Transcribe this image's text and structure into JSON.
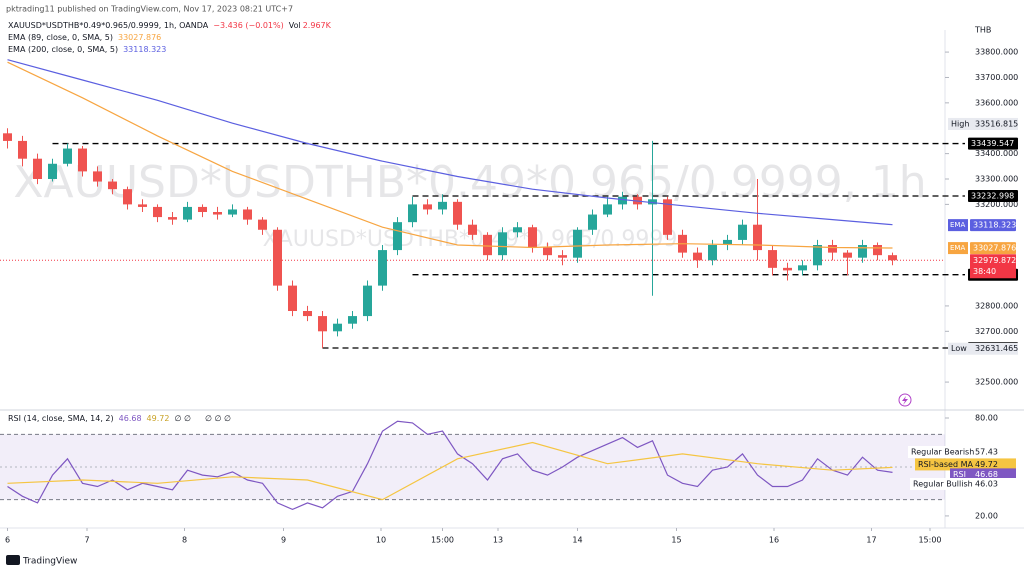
{
  "header": {
    "publisher": "pktrading11 published on TradingView.com, Nov 17, 2023 08:21 UTC+7",
    "brand": "TradingView"
  },
  "chart_data": {
    "type": "candlestick",
    "symbol": "XAUUSD*USDTHB*0.49*0.965/0.9999, 1h, OANDA",
    "change": "−3.436 (−0.01%)",
    "volume_label": "Vol",
    "volume": "2.967K",
    "watermark": "XAUUSD*USDTHB*0.49*0.965/0.9999, 1h",
    "watermark_small": "XAUUSD*USDTHB*0.49*0.965/0.9999",
    "currency": "THB",
    "up_color": "#26a69a",
    "down_color": "#ef5350",
    "x": [
      0,
      1,
      2,
      3,
      4,
      5,
      6,
      7,
      8,
      9,
      10,
      11,
      12,
      13,
      14,
      15,
      16,
      17,
      18,
      19,
      20,
      21,
      22,
      23,
      24,
      25,
      26,
      27,
      28,
      29,
      30,
      31,
      32,
      33,
      34,
      35,
      36,
      37,
      38,
      39,
      40,
      41,
      42,
      43,
      44,
      45,
      46,
      47,
      48,
      49,
      50,
      51,
      52,
      53,
      54,
      55,
      56,
      57,
      58,
      59
    ],
    "open": [
      33480,
      33450,
      33380,
      33300,
      33360,
      33420,
      33330,
      33290,
      33260,
      33200,
      33190,
      33150,
      33140,
      33190,
      33170,
      33160,
      33180,
      33140,
      33100,
      32880,
      32780,
      32760,
      32700,
      32730,
      32760,
      32880,
      33020,
      33130,
      33200,
      33180,
      33210,
      33120,
      33080,
      33000,
      33090,
      33110,
      33030,
      33000,
      32990,
      33100,
      33160,
      33200,
      33230,
      33200,
      33220,
      33080,
      33010,
      32980,
      33040,
      33060,
      33120,
      33020,
      32950,
      32940,
      32960,
      33040,
      33010,
      32990,
      33040,
      33000
    ],
    "high": [
      33500,
      33470,
      33400,
      33380,
      33440,
      33430,
      33350,
      33300,
      33270,
      33220,
      33200,
      33170,
      33210,
      33200,
      33190,
      33200,
      33190,
      33150,
      33110,
      32900,
      32800,
      32780,
      32750,
      32780,
      32900,
      33040,
      33150,
      33230,
      33220,
      33240,
      33220,
      33140,
      33090,
      33110,
      33130,
      33120,
      33050,
      33020,
      33110,
      33180,
      33230,
      33250,
      33240,
      33450,
      33230,
      33100,
      33030,
      33060,
      33080,
      33140,
      33300,
      33040,
      32970,
      32980,
      33060,
      33060,
      33020,
      33060,
      33050,
      33010
    ],
    "low": [
      33420,
      33350,
      33280,
      33290,
      33350,
      33310,
      33270,
      33240,
      33180,
      33170,
      33130,
      33120,
      33130,
      33150,
      33140,
      33150,
      33120,
      33080,
      32860,
      32760,
      32740,
      32634,
      32680,
      32710,
      32740,
      32860,
      33000,
      33110,
      33160,
      33160,
      33100,
      33060,
      32980,
      32980,
      33070,
      33010,
      32980,
      32960,
      32970,
      33080,
      33150,
      33180,
      33180,
      32840,
      33060,
      32990,
      32950,
      32960,
      33020,
      33040,
      32980,
      32920,
      32900,
      32920,
      32940,
      32980,
      32920,
      32970,
      32980,
      32960
    ],
    "close": [
      33450,
      33380,
      33300,
      33360,
      33420,
      33330,
      33290,
      33260,
      33200,
      33190,
      33150,
      33140,
      33190,
      33170,
      33160,
      33180,
      33140,
      33100,
      32880,
      32780,
      32760,
      32700,
      32730,
      32760,
      32880,
      33020,
      33130,
      33200,
      33180,
      33210,
      33120,
      33080,
      33000,
      33090,
      33110,
      33030,
      33000,
      32990,
      33100,
      33160,
      33200,
      33230,
      33200,
      33220,
      33080,
      33010,
      32980,
      33040,
      33060,
      33120,
      33020,
      32950,
      32940,
      32960,
      33040,
      33010,
      32990,
      33040,
      33000,
      32980
    ],
    "xlim": [
      -0.5,
      62.5
    ],
    "xticks": [
      {
        "value": 0,
        "label": "6"
      },
      {
        "value": 5.3,
        "label": "7"
      },
      {
        "value": 11.8,
        "label": "8"
      },
      {
        "value": 18.4,
        "label": "9"
      },
      {
        "value": 24.9,
        "label": "10"
      },
      {
        "value": 29,
        "label": "15:00"
      },
      {
        "value": 32.7,
        "label": "13"
      },
      {
        "value": 38,
        "label": "14"
      },
      {
        "value": 44.6,
        "label": "15"
      },
      {
        "value": 51.1,
        "label": "16"
      },
      {
        "value": 57.6,
        "label": "17"
      },
      {
        "value": 61.5,
        "label": "15:00"
      }
    ],
    "ylim": [
      32390,
      33887
    ],
    "yticks": [
      {
        "value": 33800,
        "label": "33800.000"
      },
      {
        "value": 33700,
        "label": "33700.000"
      },
      {
        "value": 33600,
        "label": "33600.000"
      },
      {
        "value": 33400,
        "label": "33400.000"
      },
      {
        "value": 33300,
        "label": "33300.000"
      },
      {
        "value": 33200,
        "label": "33200.000"
      },
      {
        "value": 32800,
        "label": "32800.000"
      },
      {
        "value": 32700,
        "label": "32700.000"
      },
      {
        "value": 32500,
        "label": "32500.000"
      }
    ],
    "series": [
      {
        "name": "EMA (89, close, 0, SMA, 5)",
        "axis_label": "EMA",
        "last": 33027.876,
        "color": "#f7a541",
        "x": [
          0,
          5,
          10,
          15,
          20,
          25,
          30,
          35,
          40,
          45,
          50,
          55,
          59
        ],
        "values": [
          33760,
          33620,
          33470,
          33330,
          33220,
          33110,
          33040,
          33030,
          33040,
          33045,
          33040,
          33030,
          33028
        ]
      },
      {
        "name": "EMA (200, close, 0, SMA, 5)",
        "axis_label": "EMA",
        "last": 33118.323,
        "color": "#5b5fe0",
        "x": [
          0,
          5,
          10,
          15,
          20,
          25,
          30,
          35,
          40,
          45,
          50,
          55,
          59
        ],
        "values": [
          33770,
          33690,
          33610,
          33520,
          33440,
          33370,
          33310,
          33260,
          33225,
          33195,
          33165,
          33140,
          33120
        ]
      }
    ],
    "levels": [
      {
        "value": 33439.547,
        "from": 3
      },
      {
        "value": 33232.998,
        "from": 27
      },
      {
        "value": 32923.023,
        "from": 27
      },
      {
        "value": 32634.125,
        "from": 21
      }
    ],
    "high_mark": {
      "label": "High",
      "value": 33516.815
    },
    "low_mark": {
      "label": "Low",
      "value": 32631.465
    },
    "last": {
      "value": 32979.872,
      "countdown": "38:40",
      "color": "#f23645"
    },
    "rsi": {
      "name": "RSI (14, close, SMA, 14, 2)",
      "color": "#7e57c2",
      "ma_color": "#f5c542",
      "values": [
        38,
        32,
        28,
        45,
        55,
        40,
        38,
        42,
        36,
        40,
        38,
        36,
        48,
        45,
        44,
        47,
        42,
        40,
        28,
        24,
        28,
        25,
        32,
        35,
        52,
        72,
        78,
        77,
        70,
        72,
        58,
        52,
        42,
        55,
        58,
        48,
        45,
        50,
        56,
        60,
        64,
        68,
        62,
        66,
        45,
        40,
        38,
        48,
        50,
        58,
        45,
        38,
        38,
        42,
        55,
        48,
        45,
        56,
        48,
        46.68
      ],
      "ma_x": [
        0,
        5,
        10,
        15,
        20,
        25,
        30,
        35,
        40,
        45,
        50,
        55,
        59
      ],
      "ma_values": [
        40,
        42,
        40,
        44,
        42,
        30,
        55,
        65,
        52,
        58,
        52,
        48,
        49.72
      ],
      "last": 46.68,
      "ma_last": 49.72,
      "extra_a": "∅ ∅",
      "extra_b": "∅ ∅ ∅",
      "ylim": [
        12.6,
        84.9
      ],
      "yticks": [
        {
          "value": 80,
          "label": "80.00"
        },
        {
          "value": 20,
          "label": "20.00"
        }
      ],
      "band": [
        30,
        70
      ],
      "midline": 50,
      "ma_label": "RSI-based MA",
      "rsi_label": "RSI",
      "bearish_label": "Regular Bearish",
      "bearish_value": 57.43,
      "bullish_label": "Regular Bullish",
      "bullish_value": 46.03
    }
  }
}
